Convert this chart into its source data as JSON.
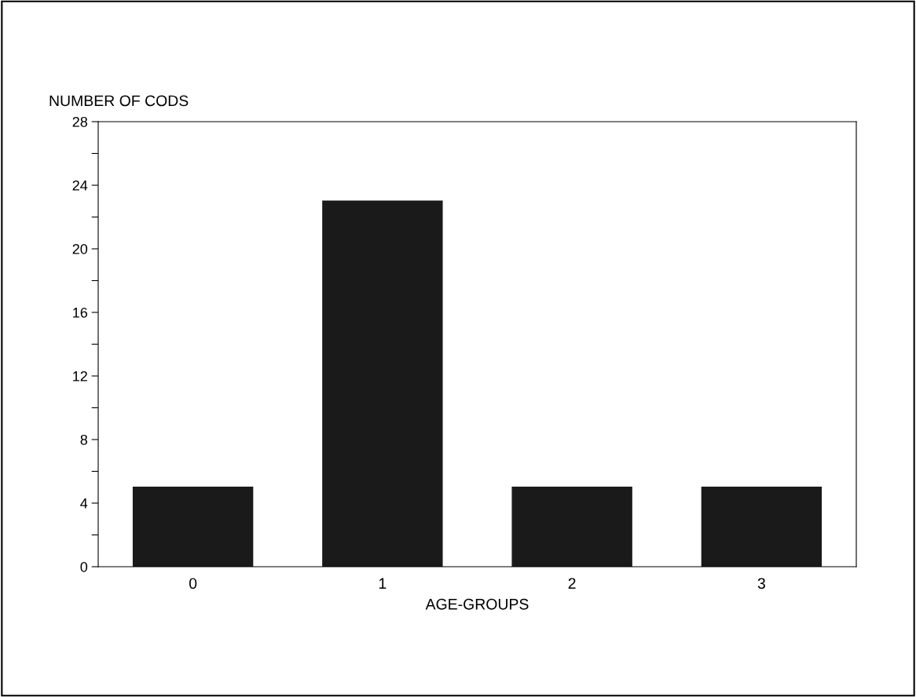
{
  "chart_data": {
    "type": "bar",
    "xlabel": "AGE-GROUPS",
    "ylabel": "NUMBER OF CODS",
    "categories": [
      "0",
      "1",
      "2",
      "3"
    ],
    "values": [
      5,
      23,
      5,
      5
    ],
    "color": "#1a1a1a",
    "ylim": [
      0,
      28
    ],
    "yticks": [
      0,
      {
        "value": 2,
        "label": null
      },
      4,
      {
        "value": 6,
        "label": null
      },
      8,
      {
        "value": 10,
        "label": null
      },
      12,
      {
        "value": 14,
        "label": null
      },
      16,
      {
        "value": 18,
        "label": null
      },
      20,
      {
        "value": 22,
        "label": null
      },
      24,
      {
        "value": 26,
        "label": null
      },
      28
    ],
    "grid": false,
    "legend": false
  }
}
